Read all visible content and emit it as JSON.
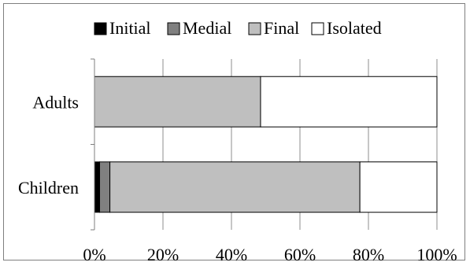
{
  "chart_data": {
    "type": "bar",
    "orientation": "horizontal",
    "stacked": "percent",
    "categories": [
      "Adults",
      "Children"
    ],
    "series": [
      {
        "name": "Initial",
        "color": "#000000",
        "values": [
          0,
          1.5
        ]
      },
      {
        "name": "Medial",
        "color": "#808080",
        "values": [
          0,
          3.0
        ]
      },
      {
        "name": "Final",
        "color": "#bfbfbf",
        "values": [
          48.5,
          73.0
        ]
      },
      {
        "name": "Isolated",
        "color": "#ffffff",
        "values": [
          51.5,
          22.5
        ]
      }
    ],
    "x_ticks": [
      "0%",
      "20%",
      "40%",
      "60%",
      "80%",
      "100%"
    ],
    "xlim": [
      0,
      100
    ],
    "grid": "vertical",
    "legend_position": "top"
  }
}
